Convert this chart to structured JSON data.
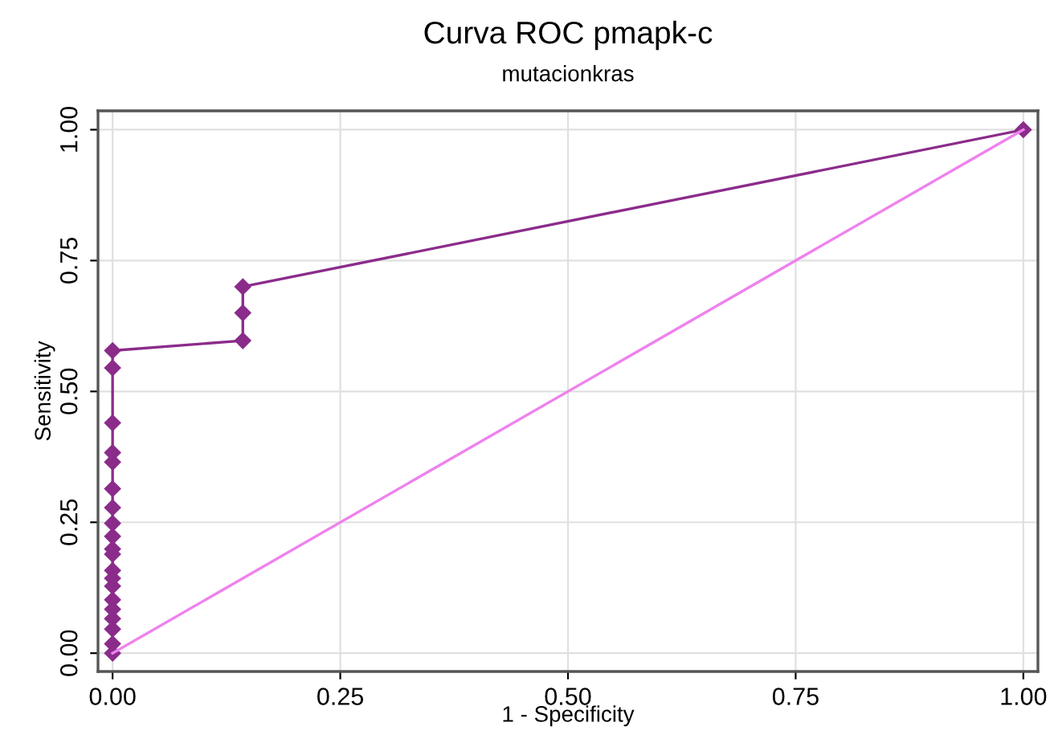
{
  "chart_data": {
    "type": "line",
    "title": "Curva ROC pmapk-c",
    "subtitle": "mutacionkras",
    "xlabel": "1 - Specificity",
    "ylabel": "Sensitivity",
    "xlim": [
      -0.016,
      1.016
    ],
    "ylim": [
      -0.035,
      1.036
    ],
    "xticks": [
      {
        "value": 0,
        "label": "0.00"
      },
      {
        "value": 0.25,
        "label": "0.25"
      },
      {
        "value": 0.5,
        "label": "0.50"
      },
      {
        "value": 0.75,
        "label": "0.75"
      },
      {
        "value": 1,
        "label": "1.00"
      }
    ],
    "yticks": [
      {
        "value": 0,
        "label": "0.00"
      },
      {
        "value": 0.25,
        "label": "0.25"
      },
      {
        "value": 0.5,
        "label": "0.50"
      },
      {
        "value": 0.75,
        "label": "0.75"
      },
      {
        "value": 1,
        "label": "1.00"
      }
    ],
    "grid": true,
    "line_style": "solid",
    "series": [
      {
        "color": "#8b2c8b",
        "marker": "diamond",
        "x": [
          0,
          0,
          0,
          0,
          0,
          0,
          0,
          0,
          0,
          0,
          0,
          0,
          0,
          0,
          0,
          0,
          0,
          0,
          0,
          0,
          0.143,
          0.143,
          0.143,
          1
        ],
        "values": [
          0,
          0.018,
          0.046,
          0.066,
          0.084,
          0.102,
          0.128,
          0.143,
          0.158,
          0.189,
          0.199,
          0.223,
          0.248,
          0.278,
          0.314,
          0.365,
          0.383,
          0.44,
          0.545,
          0.578,
          0.597,
          0.65,
          0.7,
          1
        ]
      },
      {
        "color": "#ee82ee",
        "marker": "none",
        "x": [
          0,
          1
        ],
        "values": [
          0,
          1
        ]
      }
    ]
  }
}
